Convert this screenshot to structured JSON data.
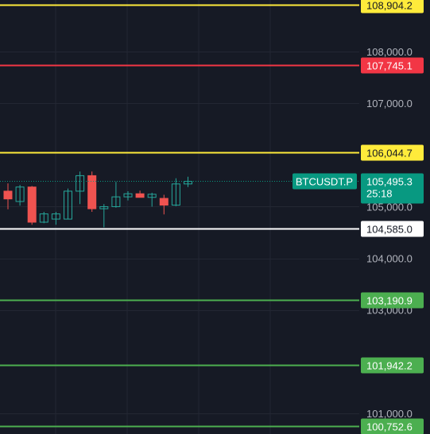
{
  "chart_data": {
    "type": "candlestick",
    "symbol": "BTCUSDT.P",
    "last_price": "105,495.3",
    "countdown": "25:18",
    "ylim": [
      100600,
      109000
    ],
    "y_ticks": [
      {
        "value": 108000,
        "label": "108,000.0"
      },
      {
        "value": 107000,
        "label": "107,000.0"
      },
      {
        "value": 105000,
        "label": "105,000.0"
      },
      {
        "value": 104000,
        "label": "104,000.0"
      },
      {
        "value": 103000,
        "label": "103,000.0"
      },
      {
        "value": 101000,
        "label": "101,000.0"
      }
    ],
    "levels": [
      {
        "value": 108904.2,
        "label": "108,904.2",
        "color": "#ffeb3b"
      },
      {
        "value": 107745.1,
        "label": "107,745.1",
        "color": "#f23645"
      },
      {
        "value": 106044.7,
        "label": "106,044.7",
        "color": "#ffeb3b"
      },
      {
        "value": 104585.0,
        "label": "104,585.0",
        "color": "#ffffff"
      },
      {
        "value": 103190.9,
        "label": "103,190.9",
        "color": "#4caf50"
      },
      {
        "value": 101942.2,
        "label": "101,942.2",
        "color": "#4caf50"
      },
      {
        "value": 100752.6,
        "label": "100,752.6",
        "color": "#4caf50"
      }
    ],
    "candles": [
      {
        "open": 105300,
        "high": 105450,
        "low": 104950,
        "close": 105150
      },
      {
        "open": 105100,
        "high": 105420,
        "low": 105020,
        "close": 105380
      },
      {
        "open": 105380,
        "high": 105400,
        "low": 104650,
        "close": 104700
      },
      {
        "open": 104700,
        "high": 104900,
        "low": 104680,
        "close": 104860
      },
      {
        "open": 104760,
        "high": 104900,
        "low": 104650,
        "close": 104860
      },
      {
        "open": 104760,
        "high": 105350,
        "low": 104760,
        "close": 105300
      },
      {
        "open": 105300,
        "high": 105680,
        "low": 105050,
        "close": 105600
      },
      {
        "open": 105600,
        "high": 105680,
        "low": 104900,
        "close": 104960
      },
      {
        "open": 104960,
        "high": 105050,
        "low": 104600,
        "close": 105000
      },
      {
        "open": 105000,
        "high": 105480,
        "low": 104980,
        "close": 105190
      },
      {
        "open": 105190,
        "high": 105300,
        "low": 105120,
        "close": 105250
      },
      {
        "open": 105250,
        "high": 105310,
        "low": 105180,
        "close": 105180
      },
      {
        "open": 105180,
        "high": 105270,
        "low": 105000,
        "close": 105240
      },
      {
        "open": 105160,
        "high": 105230,
        "low": 104850,
        "close": 105030
      },
      {
        "open": 105030,
        "high": 105550,
        "low": 105010,
        "close": 105440
      },
      {
        "open": 105440,
        "high": 105580,
        "low": 105380,
        "close": 105490
      }
    ],
    "colors": {
      "background": "#161a25",
      "grid": "#232733",
      "up": "#26a69a",
      "down": "#ef5350",
      "axis_text": "#b2b5be",
      "price_tag": "#089981"
    }
  }
}
